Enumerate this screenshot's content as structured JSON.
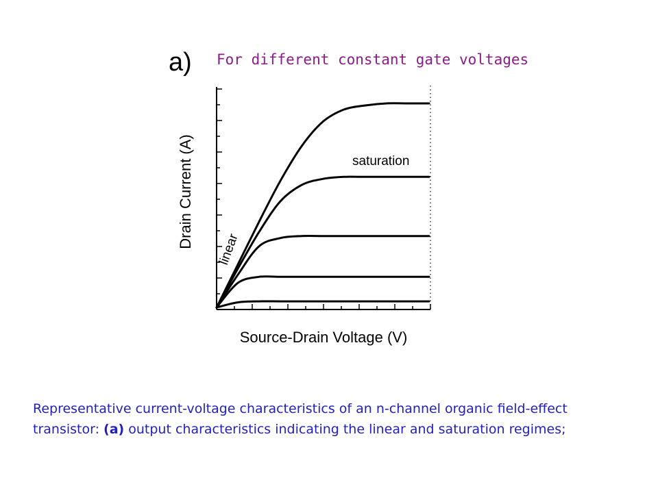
{
  "slide": {
    "panel_label": "a)",
    "subtitle": "For different constant gate voltages",
    "caption_part1": "Representative current-voltage characteristics of an n-channel organic field-effect transistor: ",
    "caption_bold": "(a)",
    "caption_part2": " output characteristics indicating the linear and saturation regimes;",
    "colors": {
      "subtitle": "#8b1a8b",
      "caption": "#1f1fbf",
      "curves": "#000000"
    }
  },
  "chart_data": {
    "type": "line",
    "xlabel": "Source-Drain Voltage (V)",
    "ylabel": "Drain Current (A)",
    "xlim": [
      0,
      1
    ],
    "ylim": [
      0,
      1
    ],
    "grid": false,
    "annotations": [
      "linear",
      "saturation"
    ],
    "series": [
      {
        "x": [
          0,
          0.1,
          0.2,
          0.3,
          0.4,
          0.5,
          0.6,
          0.7,
          0.8,
          0.9,
          1.0
        ],
        "values": [
          0,
          0.21,
          0.42,
          0.62,
          0.79,
          0.91,
          0.97,
          0.99,
          1.0,
          1.0,
          1.0
        ]
      },
      {
        "x": [
          0,
          0.1,
          0.2,
          0.3,
          0.4,
          0.5,
          0.6,
          0.7,
          0.8,
          0.9,
          1.0
        ],
        "values": [
          0,
          0.19,
          0.37,
          0.52,
          0.6,
          0.63,
          0.64,
          0.64,
          0.64,
          0.64,
          0.64
        ]
      },
      {
        "x": [
          0,
          0.1,
          0.2,
          0.3,
          0.4,
          0.5,
          0.6,
          0.7,
          0.8,
          0.9,
          1.0
        ],
        "values": [
          0,
          0.16,
          0.3,
          0.34,
          0.35,
          0.35,
          0.35,
          0.35,
          0.35,
          0.35,
          0.35
        ]
      },
      {
        "x": [
          0,
          0.1,
          0.2,
          0.3,
          0.4,
          0.5,
          0.6,
          0.7,
          0.8,
          0.9,
          1.0
        ],
        "values": [
          0,
          0.12,
          0.15,
          0.15,
          0.15,
          0.15,
          0.15,
          0.15,
          0.15,
          0.15,
          0.15
        ]
      },
      {
        "x": [
          0,
          0.1,
          0.2,
          0.3,
          0.4,
          0.5,
          0.6,
          0.7,
          0.8,
          0.9,
          1.0
        ],
        "values": [
          0,
          0.025,
          0.03,
          0.03,
          0.03,
          0.03,
          0.03,
          0.03,
          0.03,
          0.03,
          0.03
        ]
      }
    ]
  }
}
